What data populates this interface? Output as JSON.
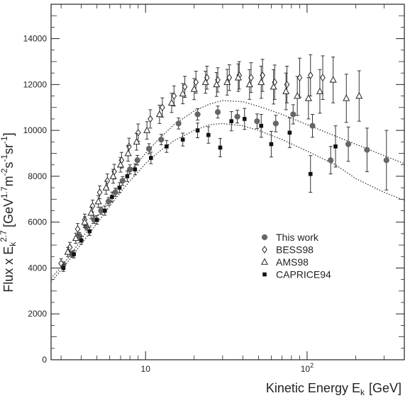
{
  "chart_data": {
    "type": "scatter",
    "title": "",
    "xlabel": "Kinetic Energy E",
    "xlabel_sub": "k",
    "xlabel_unit": "[GeV]",
    "ylabel_parts": {
      "main": "Flux x E",
      "sub": "k",
      "sup": "2.7",
      "unit_prefix": "[GeV",
      "sup2": "1.7",
      "m": "m",
      "sup3": "-2",
      "s": "s",
      "sup4": "-1",
      "sr": "sr",
      "sup5": "-1",
      "unit_suffix": "]"
    },
    "xscale": "log",
    "xlim": [
      2.6,
      400
    ],
    "ylim": [
      0,
      15500
    ],
    "x_ticks": [
      {
        "value": 10,
        "label": "10"
      },
      {
        "value": 100,
        "label": "10",
        "sup": "2"
      }
    ],
    "y_ticks": [
      {
        "value": 0,
        "label": "0"
      },
      {
        "value": 2000,
        "label": "2000"
      },
      {
        "value": 4000,
        "label": "4000"
      },
      {
        "value": 6000,
        "label": "6000"
      },
      {
        "value": 8000,
        "label": "8000"
      },
      {
        "value": 10000,
        "label": "10000"
      },
      {
        "value": 12000,
        "label": "12000"
      },
      {
        "value": 14000,
        "label": "14000"
      }
    ],
    "legend": {
      "placement": "center-right",
      "entries": [
        {
          "label": "This work",
          "marker": "circle"
        },
        {
          "label": "BESS98",
          "marker": "diamond"
        },
        {
          "label": "AMS98",
          "marker": "triangle"
        },
        {
          "label": "CAPRICE94",
          "marker": "square"
        }
      ]
    },
    "series": [
      {
        "marker": "circle",
        "color": "#666666",
        "points": [
          {
            "x": 3.1,
            "y": 4150,
            "err": 120
          },
          {
            "x": 3.5,
            "y": 4600,
            "err": 130
          },
          {
            "x": 3.9,
            "y": 5400,
            "err": 150
          },
          {
            "x": 4.3,
            "y": 5800,
            "err": 150
          },
          {
            "x": 4.8,
            "y": 6100,
            "err": 160
          },
          {
            "x": 5.3,
            "y": 6500,
            "err": 160
          },
          {
            "x": 5.9,
            "y": 6900,
            "err": 170
          },
          {
            "x": 6.5,
            "y": 7300,
            "err": 180
          },
          {
            "x": 7.2,
            "y": 7800,
            "err": 190
          },
          {
            "x": 8.0,
            "y": 8300,
            "err": 200
          },
          {
            "x": 8.9,
            "y": 8700,
            "err": 210
          },
          {
            "x": 10.5,
            "y": 9200,
            "err": 220
          },
          {
            "x": 12.5,
            "y": 9600,
            "err": 230
          },
          {
            "x": 16,
            "y": 10300,
            "err": 240
          },
          {
            "x": 21,
            "y": 10700,
            "err": 250
          },
          {
            "x": 28,
            "y": 10800,
            "err": 260
          },
          {
            "x": 37,
            "y": 10600,
            "err": 280
          },
          {
            "x": 49,
            "y": 10400,
            "err": 320
          },
          {
            "x": 64,
            "y": 10300,
            "err": 360
          },
          {
            "x": 82,
            "y": 10700,
            "err": 420
          },
          {
            "x": 108,
            "y": 10200,
            "err": 500
          },
          {
            "x": 140,
            "y": 8700,
            "err": 600
          },
          {
            "x": 180,
            "y": 9400,
            "err": 750
          },
          {
            "x": 235,
            "y": 9150,
            "err": 950
          },
          {
            "x": 310,
            "y": 8700,
            "err": 1300
          }
        ]
      },
      {
        "marker": "diamond",
        "color": "#222222",
        "points": [
          {
            "x": 3.0,
            "y": 4200,
            "err": 200
          },
          {
            "x": 3.4,
            "y": 4900,
            "err": 220
          },
          {
            "x": 3.8,
            "y": 5700,
            "err": 240
          },
          {
            "x": 4.2,
            "y": 6100,
            "err": 250
          },
          {
            "x": 4.7,
            "y": 6700,
            "err": 260
          },
          {
            "x": 5.2,
            "y": 7300,
            "err": 280
          },
          {
            "x": 5.8,
            "y": 7800,
            "err": 300
          },
          {
            "x": 6.4,
            "y": 8200,
            "err": 320
          },
          {
            "x": 7.1,
            "y": 8700,
            "err": 340
          },
          {
            "x": 7.9,
            "y": 9300,
            "err": 360
          },
          {
            "x": 9.0,
            "y": 9900,
            "err": 380
          },
          {
            "x": 10.7,
            "y": 10500,
            "err": 400
          },
          {
            "x": 12.7,
            "y": 11000,
            "err": 420
          },
          {
            "x": 15,
            "y": 11500,
            "err": 440
          },
          {
            "x": 17.5,
            "y": 11900,
            "err": 460
          },
          {
            "x": 20.5,
            "y": 12100,
            "err": 480
          },
          {
            "x": 24,
            "y": 12300,
            "err": 500
          },
          {
            "x": 28,
            "y": 12200,
            "err": 530
          },
          {
            "x": 33,
            "y": 12300,
            "err": 560
          },
          {
            "x": 38,
            "y": 12400,
            "err": 600
          },
          {
            "x": 45,
            "y": 12300,
            "err": 650
          },
          {
            "x": 53,
            "y": 12400,
            "err": 700
          },
          {
            "x": 63,
            "y": 12100,
            "err": 750
          },
          {
            "x": 75,
            "y": 12000,
            "err": 800
          },
          {
            "x": 90,
            "y": 12300,
            "err": 850
          },
          {
            "x": 105,
            "y": 12400,
            "err": 900
          },
          {
            "x": 125,
            "y": 12300,
            "err": 950
          }
        ]
      },
      {
        "marker": "triangle",
        "color": "#222222",
        "points": [
          {
            "x": 3.3,
            "y": 4700,
            "err": 200
          },
          {
            "x": 3.7,
            "y": 5300,
            "err": 220
          },
          {
            "x": 4.2,
            "y": 6000,
            "err": 240
          },
          {
            "x": 4.6,
            "y": 6400,
            "err": 250
          },
          {
            "x": 5.1,
            "y": 6900,
            "err": 260
          },
          {
            "x": 5.7,
            "y": 7500,
            "err": 280
          },
          {
            "x": 6.3,
            "y": 8000,
            "err": 300
          },
          {
            "x": 7.0,
            "y": 8500,
            "err": 320
          },
          {
            "x": 7.8,
            "y": 9000,
            "err": 340
          },
          {
            "x": 8.8,
            "y": 9500,
            "err": 360
          },
          {
            "x": 10.2,
            "y": 10000,
            "err": 380
          },
          {
            "x": 12.2,
            "y": 10700,
            "err": 400
          },
          {
            "x": 14.5,
            "y": 11200,
            "err": 420
          },
          {
            "x": 17,
            "y": 11600,
            "err": 440
          },
          {
            "x": 20,
            "y": 11800,
            "err": 460
          },
          {
            "x": 23.5,
            "y": 12100,
            "err": 480
          },
          {
            "x": 27.5,
            "y": 12000,
            "err": 520
          },
          {
            "x": 32,
            "y": 12100,
            "err": 560
          },
          {
            "x": 37.5,
            "y": 12300,
            "err": 600
          },
          {
            "x": 44,
            "y": 12000,
            "err": 650
          },
          {
            "x": 52,
            "y": 12100,
            "err": 700
          },
          {
            "x": 62,
            "y": 11900,
            "err": 750
          },
          {
            "x": 74,
            "y": 11700,
            "err": 800
          },
          {
            "x": 87,
            "y": 11500,
            "err": 850
          },
          {
            "x": 102,
            "y": 11400,
            "err": 900
          },
          {
            "x": 120,
            "y": 11700,
            "err": 950
          },
          {
            "x": 145,
            "y": 12200,
            "err": 1000
          },
          {
            "x": 175,
            "y": 11400,
            "err": 1050
          },
          {
            "x": 210,
            "y": 11500,
            "err": 1100
          }
        ]
      },
      {
        "marker": "square",
        "color": "#111111",
        "points": [
          {
            "x": 3.1,
            "y": 4000,
            "err": 150
          },
          {
            "x": 3.6,
            "y": 4600,
            "err": 160
          },
          {
            "x": 4.0,
            "y": 5200,
            "err": 170
          },
          {
            "x": 4.5,
            "y": 5600,
            "err": 180
          },
          {
            "x": 5.0,
            "y": 6100,
            "err": 190
          },
          {
            "x": 5.6,
            "y": 6500,
            "err": 200
          },
          {
            "x": 6.2,
            "y": 7100,
            "err": 210
          },
          {
            "x": 6.9,
            "y": 7500,
            "err": 220
          },
          {
            "x": 7.7,
            "y": 8000,
            "err": 230
          },
          {
            "x": 8.6,
            "y": 8300,
            "err": 240
          },
          {
            "x": 10.8,
            "y": 8800,
            "err": 250
          },
          {
            "x": 13.5,
            "y": 9300,
            "err": 260
          },
          {
            "x": 17,
            "y": 9600,
            "err": 280
          },
          {
            "x": 21,
            "y": 10000,
            "err": 320
          },
          {
            "x": 24.5,
            "y": 9800,
            "err": 360
          },
          {
            "x": 29,
            "y": 9250,
            "err": 400
          },
          {
            "x": 34,
            "y": 10400,
            "err": 420
          },
          {
            "x": 41,
            "y": 10500,
            "err": 460
          },
          {
            "x": 52,
            "y": 10200,
            "err": 500
          },
          {
            "x": 60,
            "y": 9400,
            "err": 560
          },
          {
            "x": 78,
            "y": 9900,
            "err": 650
          },
          {
            "x": 105,
            "y": 8100,
            "err": 800
          },
          {
            "x": 150,
            "y": 9300,
            "err": 900
          }
        ]
      }
    ],
    "curves": [
      {
        "style": "dotted",
        "points": [
          [
            2.6,
            3550
          ],
          [
            3,
            4050
          ],
          [
            3.5,
            4650
          ],
          [
            4,
            5250
          ],
          [
            5,
            6250
          ],
          [
            6,
            7050
          ],
          [
            7,
            7700
          ],
          [
            8,
            8200
          ],
          [
            10,
            9000
          ],
          [
            12,
            9600
          ],
          [
            15,
            10250
          ],
          [
            20,
            10850
          ],
          [
            25,
            11150
          ],
          [
            30,
            11300
          ],
          [
            40,
            11250
          ],
          [
            50,
            11050
          ],
          [
            70,
            10700
          ],
          [
            100,
            10250
          ],
          [
            150,
            9750
          ],
          [
            200,
            9400
          ],
          [
            300,
            8900
          ],
          [
            400,
            8550
          ]
        ]
      },
      {
        "style": "dotted",
        "points": [
          [
            2.6,
            3400
          ],
          [
            3,
            3900
          ],
          [
            3.5,
            4500
          ],
          [
            4,
            5050
          ],
          [
            5,
            5950
          ],
          [
            6,
            6700
          ],
          [
            7,
            7300
          ],
          [
            8,
            7800
          ],
          [
            10,
            8550
          ],
          [
            12,
            9050
          ],
          [
            15,
            9550
          ],
          [
            20,
            10000
          ],
          [
            25,
            10250
          ],
          [
            30,
            10300
          ],
          [
            40,
            10200
          ],
          [
            50,
            10000
          ],
          [
            70,
            9600
          ],
          [
            100,
            9100
          ],
          [
            150,
            8500
          ],
          [
            200,
            7900
          ],
          [
            300,
            7300
          ],
          [
            400,
            6950
          ]
        ]
      }
    ]
  }
}
